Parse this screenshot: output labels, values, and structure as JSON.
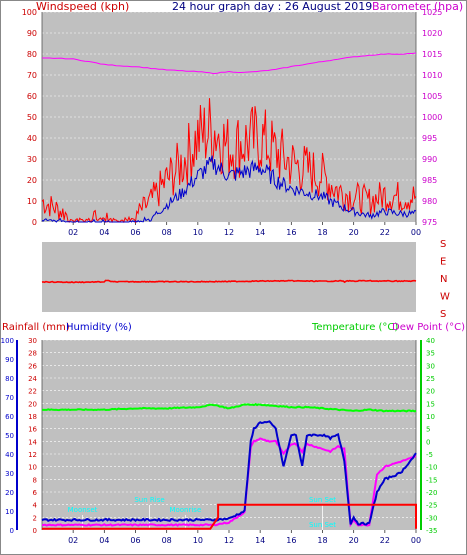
{
  "title": "24 hour graph day : 26 August 2019",
  "colors": {
    "plot_bg": "#c0c0c0",
    "gust": "#ff0000",
    "speed": "#0000cc",
    "barometer": "#ff00ff",
    "direction": "#ff0000",
    "temperature": "#00ff00",
    "dewpoint": "#ff00ff",
    "humidity": "#0000cc",
    "rainfall": "#ff0000",
    "axis_red": "#cc0000",
    "axis_magenta": "#cc00cc",
    "axis_green": "#00cc00",
    "axis_blue": "#0000cc",
    "title_blue": "#000080",
    "event_cyan": "#00ffff"
  },
  "hour_labels": [
    "02",
    "04",
    "06",
    "08",
    "10",
    "12",
    "14",
    "16",
    "18",
    "20",
    "22",
    "00"
  ],
  "chart_data": [
    {
      "type": "line",
      "name": "wind-barometer",
      "ylabel_left": "Windspeed (kph)",
      "ylabel_right": "Barometer (hpa)",
      "ylim": [
        0,
        100
      ],
      "ylim_right": [
        975,
        1025
      ],
      "yticks": [
        0,
        10,
        20,
        30,
        40,
        50,
        60,
        70,
        80,
        90,
        100
      ],
      "yticks_right": [
        975,
        980,
        985,
        990,
        995,
        1000,
        1005,
        1010,
        1015,
        1020,
        1025
      ],
      "x_hours": [
        0,
        1,
        2,
        3,
        4,
        5,
        6,
        7,
        8,
        9,
        10,
        11,
        12,
        13,
        14,
        15,
        16,
        17,
        18,
        19,
        20,
        21,
        22,
        23,
        24
      ],
      "series": [
        {
          "key": "gust",
          "values": [
            10,
            6,
            2,
            2,
            2,
            2,
            3,
            10,
            20,
            28,
            40,
            45,
            35,
            38,
            40,
            33,
            28,
            25,
            22,
            15,
            12,
            10,
            13,
            12,
            12
          ]
        },
        {
          "key": "speed",
          "values": [
            2,
            1,
            0,
            0,
            0,
            0,
            0,
            2,
            8,
            14,
            22,
            28,
            22,
            24,
            26,
            20,
            16,
            14,
            12,
            8,
            5,
            3,
            5,
            4,
            4
          ]
        },
        {
          "key": "barometer",
          "values": [
            1014,
            1014,
            1013.8,
            1013.2,
            1012.5,
            1012.2,
            1012,
            1011.6,
            1011.2,
            1011,
            1010.8,
            1010.4,
            1010.8,
            1010.6,
            1010.9,
            1011.3,
            1012,
            1012.6,
            1013.2,
            1013.8,
            1014.3,
            1014.7,
            1015,
            1015,
            1015.2
          ]
        }
      ]
    },
    {
      "type": "line",
      "name": "wind-direction",
      "direction_labels": [
        "S",
        "E",
        "N",
        "W",
        "S"
      ],
      "x_hours": [
        0,
        2,
        4,
        6,
        8,
        10,
        12,
        14,
        16,
        18,
        20,
        22,
        24
      ],
      "series": [
        {
          "key": "direction",
          "values": [
            205,
            207,
            205,
            204,
            204,
            204,
            203,
            201,
            200,
            202,
            199,
            201,
            201
          ]
        }
      ]
    },
    {
      "type": "line",
      "name": "temp-humidity-rain",
      "ylabel_left_1": "Rainfall (mm)",
      "ylabel_left_2": "Humidity (%)",
      "ylabel_right_1": "Temperature (°C)",
      "ylabel_right_2": "Dew Point (°C)",
      "ylim": [
        0,
        30
      ],
      "yticks_rain": [
        0,
        2,
        4,
        6,
        8,
        10,
        12,
        14,
        16,
        18,
        20,
        22,
        24,
        26,
        28,
        30
      ],
      "yticks_humidity": [
        0,
        10,
        20,
        30,
        40,
        50,
        60,
        70,
        80,
        90,
        100
      ],
      "yticks_temp": [
        -35,
        -30,
        -25,
        -20,
        -15,
        -10,
        -5,
        0,
        5,
        10,
        15,
        20,
        25,
        30,
        35,
        40
      ],
      "events": [
        {
          "label": "Moonset",
          "hour": 2.6
        },
        {
          "label": "Sun Rise",
          "hour": 6.9
        },
        {
          "label": "Moonrise",
          "hour": 9.2
        },
        {
          "label": "Sun Set",
          "hour": 18.0
        },
        {
          "label": "Sun Set",
          "hour": 18.0
        }
      ],
      "humidity_x": [
        0,
        2,
        4,
        6,
        8,
        10,
        11,
        12,
        13,
        13.4,
        13.6,
        14,
        14.6,
        15,
        15.5,
        16,
        16.3,
        16.7,
        17,
        17.5,
        18,
        18.5,
        19,
        19.4,
        19.8,
        20,
        20.3,
        21,
        21.5,
        22,
        23,
        24
      ],
      "humidity_y": [
        1.6,
        1.6,
        1.6,
        1.6,
        1.6,
        1.6,
        1.6,
        1.8,
        3,
        14,
        16,
        17,
        17,
        16,
        10,
        15,
        15,
        10,
        15,
        15,
        15,
        14.5,
        15,
        11,
        1,
        2,
        1,
        1,
        6,
        8,
        9,
        12
      ],
      "dewpoint_x": [
        0,
        2,
        4,
        6,
        8,
        10,
        11,
        12,
        13,
        13.4,
        13.6,
        14,
        14.6,
        15,
        15.5,
        16,
        16.3,
        16.7,
        17,
        17.5,
        18,
        18.5,
        19,
        19.4,
        19.8,
        20,
        20.3,
        21,
        21.5,
        22,
        23,
        24
      ],
      "dewpoint_y": [
        -33,
        -33,
        -33,
        -33,
        -33,
        -33,
        -33,
        -32,
        -28,
        -2,
        0,
        1,
        0,
        0,
        -5,
        -1,
        -1,
        -4,
        -1,
        -2,
        -3,
        -4,
        -2,
        -3,
        -33,
        -31,
        -33,
        -33,
        -13,
        -10,
        -8,
        -6
      ],
      "temperature_x": [
        0,
        2,
        4,
        6,
        8,
        10,
        11,
        12,
        13,
        14,
        15,
        16,
        17,
        18,
        19,
        20,
        21,
        22,
        23,
        24
      ],
      "temperature_y": [
        12.5,
        12.5,
        12.5,
        13,
        13,
        13.5,
        14.5,
        13,
        14.5,
        14.5,
        14,
        13.5,
        13.5,
        13,
        12.5,
        12,
        12.5,
        12,
        12,
        12
      ],
      "rain_x": [
        0,
        10.8,
        11.3,
        11.3,
        24,
        24
      ],
      "rain_y": [
        0.2,
        0.2,
        2,
        4,
        4,
        0.2
      ]
    }
  ]
}
